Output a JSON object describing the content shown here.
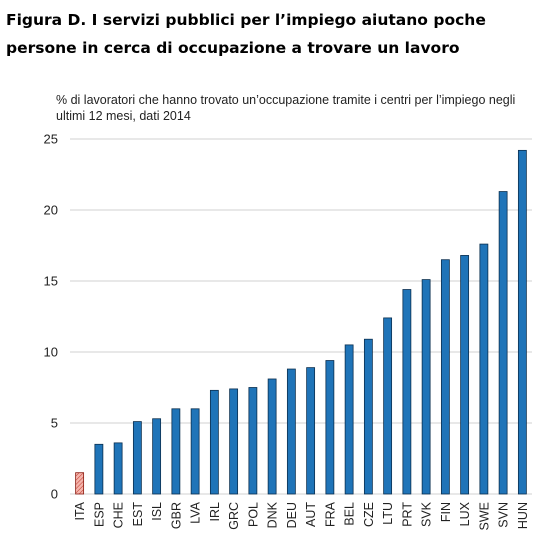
{
  "title": "Figura D. I servizi pubblici per l’impiego aiutano poche persone in cerca di occupazione a trovare un lavoro",
  "chart_data": {
    "type": "bar",
    "title": "Figura D. I servizi pubblici per l’impiego aiutano poche persone in cerca di occupazione a trovare un lavoro",
    "ylabel": "% di lavoratori che hanno trovato un’occupazione tramite i centri per l’impiego negli ultimi 12 mesi, dati 2014",
    "xlabel": "",
    "ylim": [
      0,
      25
    ],
    "yticks": [
      0,
      5,
      10,
      15,
      20,
      25
    ],
    "grid": true,
    "categories": [
      "ITA",
      "ESP",
      "CHE",
      "EST",
      "ISL",
      "GBR",
      "LVA",
      "IRL",
      "GRC",
      "POL",
      "DNK",
      "DEU",
      "AUT",
      "FRA",
      "BEL",
      "CZE",
      "LTU",
      "PRT",
      "SVK",
      "FIN",
      "LUX",
      "SWE",
      "SVN",
      "HUN"
    ],
    "values": [
      1.5,
      3.5,
      3.6,
      5.1,
      5.3,
      6.0,
      6.0,
      7.3,
      7.4,
      7.5,
      8.1,
      8.8,
      8.9,
      9.4,
      10.5,
      10.9,
      12.4,
      14.4,
      15.1,
      16.5,
      16.8,
      17.6,
      21.3,
      24.2
    ],
    "highlight": "ITA",
    "colors": {
      "bar": "#1f74b8",
      "bar_stroke": "#0b2f4f",
      "highlight": "#f0a59c",
      "highlight_stroke": "#8a1a10",
      "grid": "#d0d0d0"
    }
  }
}
